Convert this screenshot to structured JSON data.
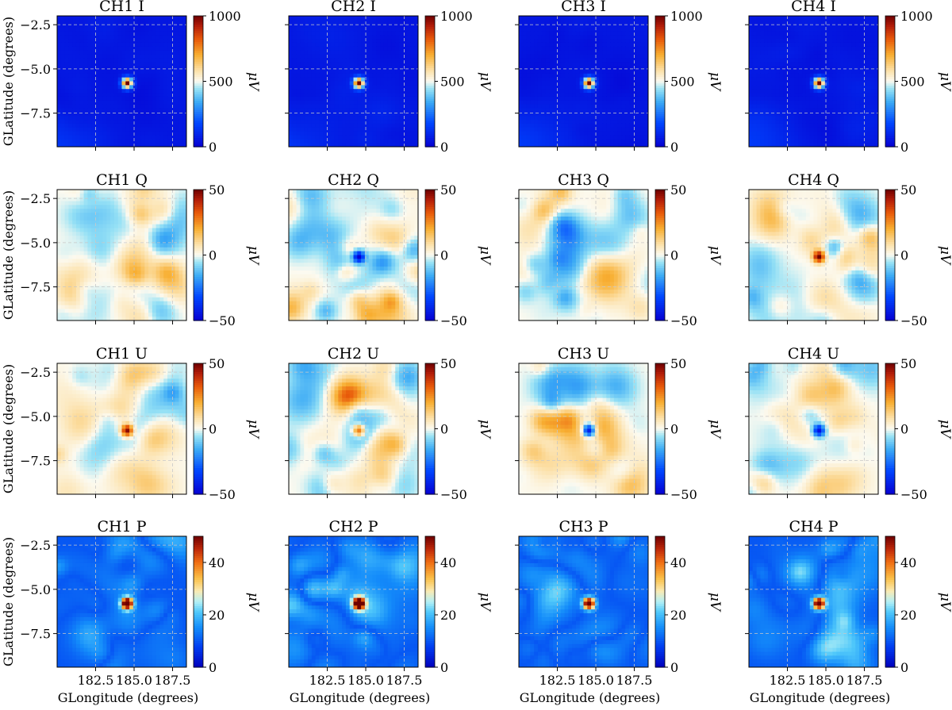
{
  "chart_data": {
    "type": "heatmap",
    "figure_description_axes": {
      "xlabel": "GLongitude (degrees)",
      "ylabel": "GLatitude (degrees)",
      "x_range": [
        180.0,
        188.4
      ],
      "y_range": [
        -9.4,
        -2.0
      ],
      "x_ticks": [
        182.5,
        185.0,
        187.5
      ],
      "x_tick_labels": [
        "182.5",
        "185.0",
        "187.5"
      ],
      "y_ticks": [
        -2.5,
        -5.0,
        -7.5
      ],
      "y_tick_labels": [
        "−2.5",
        "−5.0",
        "−7.5"
      ],
      "grid": true,
      "source_position": [
        184.55,
        -5.8
      ]
    },
    "colorbar_label": "μV",
    "channels": [
      "CH1",
      "CH2",
      "CH3",
      "CH4"
    ],
    "rows": [
      {
        "stokes": "I",
        "cmap": "diverging",
        "vmin": 0,
        "vmax": 1000,
        "cbar_ticks": [
          "0",
          "500",
          "1000"
        ],
        "cbar_tick_values": [
          0,
          500,
          1000
        ],
        "panels": [
          {
            "title": "CH1 I",
            "peak": 1000
          },
          {
            "title": "CH2 I",
            "peak": 1000
          },
          {
            "title": "CH3 I",
            "peak": 1000
          },
          {
            "title": "CH4 I",
            "peak": 1000
          }
        ]
      },
      {
        "stokes": "Q",
        "cmap": "diverging",
        "vmin": -50,
        "vmax": 50,
        "cbar_ticks": [
          "−50",
          "0",
          "50"
        ],
        "cbar_tick_values": [
          -50,
          0,
          50
        ],
        "panels": [
          {
            "title": "CH1 Q",
            "peak": 0
          },
          {
            "title": "CH2 Q",
            "peak": -48
          },
          {
            "title": "CH3 Q",
            "peak": 0
          },
          {
            "title": "CH4 Q",
            "peak": 50
          }
        ]
      },
      {
        "stokes": "U",
        "cmap": "diverging",
        "vmin": -50,
        "vmax": 50,
        "cbar_ticks": [
          "−50",
          "0",
          "50"
        ],
        "cbar_tick_values": [
          -50,
          0,
          50
        ],
        "panels": [
          {
            "title": "CH1 U",
            "peak": 50
          },
          {
            "title": "CH2 U",
            "peak": 40
          },
          {
            "title": "CH3 U",
            "peak": -50
          },
          {
            "title": "CH4 U",
            "peak": -45
          }
        ]
      },
      {
        "stokes": "P",
        "cmap": "jet",
        "vmin": 0,
        "vmax": 50,
        "cbar_ticks": [
          "0",
          "20",
          "40"
        ],
        "cbar_tick_values": [
          0,
          20,
          40
        ],
        "panels": [
          {
            "title": "CH1 P",
            "peak": 50
          },
          {
            "title": "CH2 P",
            "peak": 50
          },
          {
            "title": "CH3 P",
            "peak": 50
          },
          {
            "title": "CH4 P",
            "peak": 50
          }
        ]
      }
    ]
  }
}
